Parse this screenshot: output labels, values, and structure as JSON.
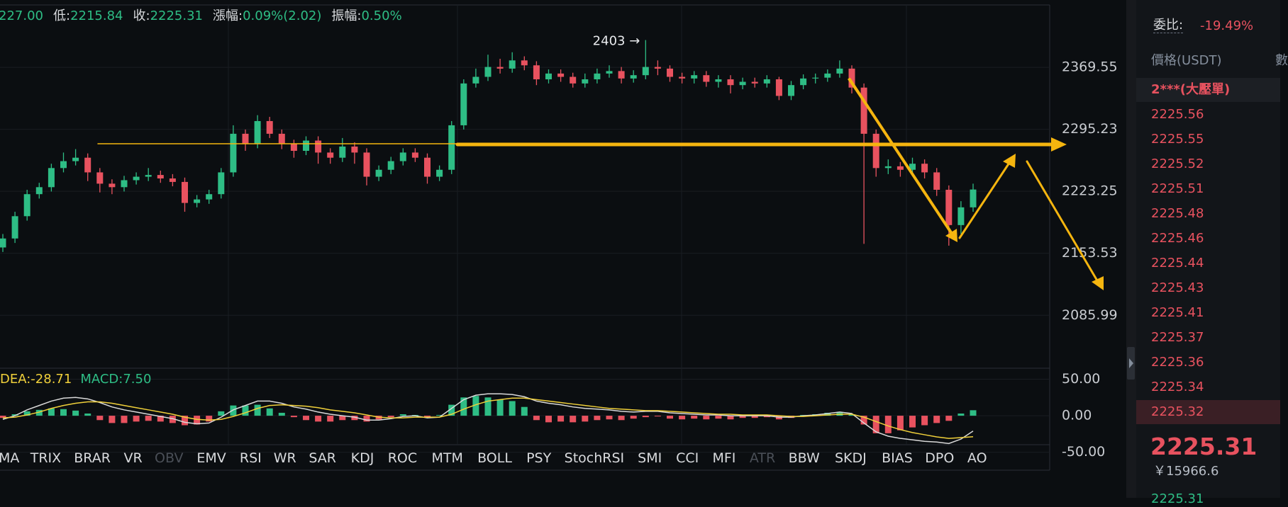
{
  "header": {
    "stats": [
      {
        "value": "227.00"
      },
      {
        "label": "低:",
        "value": "2215.84"
      },
      {
        "label": "收:",
        "value": "2225.31"
      },
      {
        "label": "漲幅:",
        "value": "0.09%(2.02)"
      },
      {
        "label": "振幅:",
        "value": "0.50%"
      }
    ]
  },
  "chart_data": {
    "type": "candlestick",
    "log_scale": true,
    "ylim": [
      2030,
      2453
    ],
    "yticks": [
      2369.55,
      2295.23,
      2223.25,
      2153.53,
      2085.99
    ],
    "up_color": "#2ebd85",
    "down_color": "#e8525f",
    "max_label": "2403 →",
    "open": [
      2160,
      2170,
      2195,
      2220,
      2228,
      2250,
      2258,
      2262,
      2245,
      2232,
      2228,
      2236,
      2240,
      2242,
      2238,
      2234,
      2210,
      2214,
      2220,
      2245,
      2290,
      2278,
      2305,
      2290,
      2278,
      2270,
      2282,
      2268,
      2262,
      2275,
      2268,
      2240,
      2248,
      2258,
      2268,
      2262,
      2240,
      2248,
      2300,
      2350,
      2358,
      2370,
      2368,
      2378,
      2372,
      2355,
      2362,
      2358,
      2350,
      2355,
      2362,
      2365,
      2356,
      2360,
      2370,
      2368,
      2358,
      2356,
      2360,
      2352,
      2355,
      2348,
      2352,
      2350,
      2355,
      2335,
      2348,
      2356,
      2357,
      2362,
      2368,
      2345,
      2290,
      2250,
      2252,
      2248,
      2255,
      2245,
      2225,
      2185,
      2205
    ],
    "high": [
      2175,
      2200,
      2225,
      2233,
      2255,
      2268,
      2272,
      2267,
      2250,
      2237,
      2241,
      2245,
      2250,
      2247,
      2243,
      2239,
      2219,
      2225,
      2250,
      2300,
      2295,
      2312,
      2310,
      2295,
      2283,
      2287,
      2287,
      2273,
      2285,
      2280,
      2273,
      2253,
      2263,
      2273,
      2273,
      2267,
      2253,
      2305,
      2355,
      2368,
      2385,
      2380,
      2388,
      2383,
      2377,
      2367,
      2367,
      2363,
      2362,
      2368,
      2372,
      2370,
      2366,
      2403,
      2378,
      2372,
      2363,
      2365,
      2365,
      2360,
      2360,
      2357,
      2357,
      2360,
      2358,
      2353,
      2361,
      2362,
      2367,
      2378,
      2372,
      2350,
      2295,
      2260,
      2257,
      2262,
      2260,
      2250,
      2230,
      2212,
      2232
    ],
    "low": [
      2155,
      2165,
      2190,
      2215,
      2223,
      2245,
      2253,
      2235,
      2222,
      2220,
      2223,
      2231,
      2235,
      2233,
      2229,
      2200,
      2205,
      2209,
      2215,
      2240,
      2270,
      2273,
      2285,
      2272,
      2262,
      2265,
      2255,
      2255,
      2257,
      2255,
      2230,
      2235,
      2243,
      2253,
      2257,
      2232,
      2235,
      2243,
      2295,
      2345,
      2353,
      2362,
      2363,
      2366,
      2348,
      2350,
      2352,
      2345,
      2345,
      2350,
      2357,
      2350,
      2351,
      2355,
      2360,
      2352,
      2350,
      2350,
      2346,
      2345,
      2338,
      2343,
      2345,
      2345,
      2330,
      2330,
      2343,
      2350,
      2352,
      2357,
      2338,
      2164,
      2240,
      2243,
      2240,
      2243,
      2238,
      2218,
      2162,
      2175,
      2200
    ],
    "close": [
      2170,
      2195,
      2220,
      2228,
      2250,
      2258,
      2262,
      2245,
      2232,
      2228,
      2236,
      2240,
      2242,
      2238,
      2234,
      2210,
      2214,
      2220,
      2245,
      2290,
      2278,
      2305,
      2290,
      2278,
      2270,
      2282,
      2268,
      2262,
      2275,
      2268,
      2240,
      2248,
      2258,
      2268,
      2262,
      2240,
      2248,
      2300,
      2350,
      2358,
      2370,
      2368,
      2378,
      2372,
      2355,
      2362,
      2358,
      2350,
      2355,
      2362,
      2365,
      2356,
      2360,
      2370,
      2368,
      2358,
      2356,
      2360,
      2352,
      2355,
      2348,
      2352,
      2350,
      2355,
      2335,
      2348,
      2356,
      2357,
      2362,
      2368,
      2345,
      2290,
      2250,
      2252,
      2248,
      2255,
      2245,
      2225,
      2185,
      2205,
      2225.31
    ]
  },
  "macd": {
    "type": "macd",
    "ylim": [
      -59,
      64
    ],
    "yticks": [
      {
        "value": 50,
        "label": "50.00"
      },
      {
        "value": 0,
        "label": "0.00"
      },
      {
        "value": -50,
        "label": "-50.00"
      }
    ],
    "dif_color": "#d9d9d9",
    "dea_color": "#f0d03a",
    "hist_up_color": "#2ebd85",
    "hist_down_color": "#e8525f",
    "legend": [
      {
        "label": "DEA:",
        "value": "-28.71"
      },
      {
        "label": "MACD:",
        "value": "7.50"
      }
    ],
    "hist": [
      -3,
      2,
      6,
      8,
      10,
      9,
      7,
      3,
      -6,
      -10,
      -10,
      -8,
      -7,
      -8,
      -10,
      -13,
      -12,
      -8,
      6,
      14,
      14,
      15,
      10,
      4,
      -2,
      -6,
      -8,
      -8,
      -6,
      -6,
      -8,
      -5,
      -2,
      2,
      1,
      -2,
      1,
      15,
      25,
      27,
      25,
      22,
      20,
      12,
      -6,
      -9,
      -8,
      -9,
      -8,
      -6,
      -5,
      -6,
      -4,
      -2,
      -1,
      -4,
      -5,
      -4,
      -5,
      -4,
      -5,
      -3,
      -3,
      -2,
      -5,
      -3,
      1,
      2,
      4,
      5,
      2,
      -12,
      -24,
      -24,
      -20,
      -16,
      -13,
      -10,
      -7,
      3,
      7.5
    ],
    "dif": [
      -5,
      0,
      8,
      14,
      20,
      24,
      25,
      23,
      18,
      12,
      8,
      5,
      2,
      -1,
      -4,
      -9,
      -11,
      -10,
      -2,
      8,
      14,
      20,
      20,
      17,
      12,
      9,
      5,
      2,
      0,
      -2,
      -6,
      -6,
      -4,
      -1,
      0,
      -3,
      -2,
      10,
      22,
      28,
      30,
      30,
      29,
      26,
      20,
      17,
      15,
      12,
      10,
      9,
      8,
      6,
      5,
      6,
      6,
      4,
      3,
      2,
      1,
      1,
      0,
      0,
      0,
      0,
      -2,
      -2,
      0,
      1,
      3,
      5,
      3,
      -10,
      -22,
      -28,
      -31,
      -33,
      -35,
      -36,
      -38,
      -32,
      -21
    ],
    "dea": [
      -3,
      -2,
      1,
      5,
      10,
      14,
      17,
      19,
      19,
      17,
      14,
      11,
      8,
      5,
      2,
      -2,
      -5,
      -6,
      -5,
      -1,
      4,
      10,
      14,
      15,
      14,
      13,
      11,
      8,
      6,
      4,
      1,
      -2,
      -3,
      -3,
      -2,
      -2,
      -2,
      2,
      9,
      15,
      20,
      22,
      24,
      24,
      22,
      20,
      18,
      16,
      14,
      12,
      10,
      9,
      8,
      7,
      7,
      6,
      5,
      4,
      3,
      2,
      2,
      1,
      1,
      1,
      0,
      -1,
      -1,
      0,
      1,
      2,
      2,
      -2,
      -8,
      -14,
      -19,
      -23,
      -26,
      -29,
      -31,
      -30,
      -28.71
    ]
  },
  "indicator_tabs": {
    "items": [
      "MA",
      "TRIX",
      "BRAR",
      "VR",
      "OBV",
      "EMV",
      "RSI",
      "WR",
      "SAR",
      "KDJ",
      "ROC",
      "MTM",
      "BOLL",
      "PSY",
      "StochRSI",
      "SMI",
      "CCI",
      "MFI",
      "ATR",
      "BBW",
      "SKDJ",
      "BIAS",
      "DPO",
      "AO"
    ],
    "disabled_indices": [
      4,
      18
    ]
  },
  "order_book": {
    "ratio_label": "委比:",
    "ratio_value": "-19.49%",
    "price_header": "價格(USDT)",
    "amount_header": "數",
    "big_order": "2***(大壓單)",
    "asks": [
      2225.56,
      2225.55,
      2225.52,
      2225.51,
      2225.48,
      2225.46,
      2225.44,
      2225.43,
      2225.41,
      2225.37,
      2225.36,
      2225.34,
      2225.32
    ],
    "last_price": 2225.31,
    "last_price_cny": "￥15966.6",
    "first_bid": 2225.31
  }
}
